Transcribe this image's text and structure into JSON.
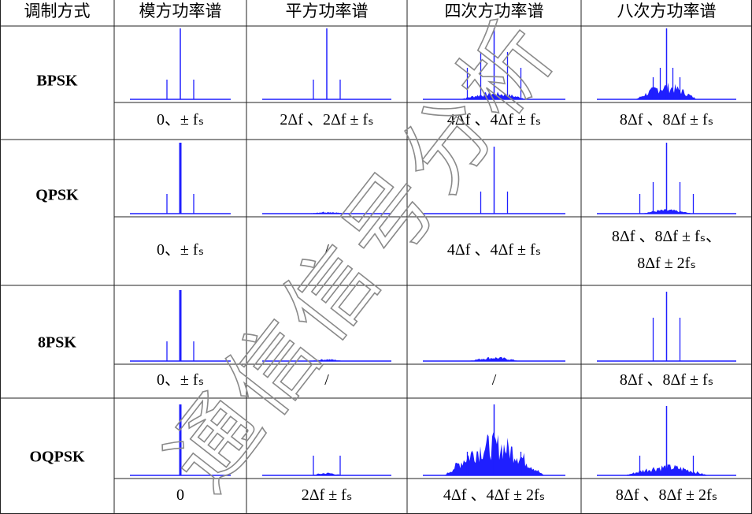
{
  "header": [
    "调制方式",
    "模方功率谱",
    "平方功率谱",
    "四次方功率谱",
    "八次方功率谱"
  ],
  "rows": [
    {
      "modulation": "BPSK",
      "features": [
        [
          "0、± fₛ"
        ],
        [
          "2Δf 、2Δf ± fₛ"
        ],
        [
          "4Δf 、4Δf ± fₛ"
        ],
        [
          "8Δf 、8Δf ± fₛ"
        ]
      ]
    },
    {
      "modulation": "QPSK",
      "features": [
        [
          "0、± fₛ"
        ],
        [
          "/"
        ],
        [
          "4Δf 、4Δf ± fₛ"
        ],
        [
          "8Δf 、8Δf ± fₛ、",
          "8Δf ± 2fₛ"
        ]
      ]
    },
    {
      "modulation": "8PSK",
      "features": [
        [
          "0、± fₛ"
        ],
        [
          "/"
        ],
        [
          "/"
        ],
        [
          "8Δf 、8Δf ± fₛ"
        ]
      ]
    },
    {
      "modulation": "OQPSK",
      "features": [
        [
          "0"
        ],
        [
          "2Δf ± fₛ"
        ],
        [
          "4Δf 、4Δf ± 2fₛ"
        ],
        [
          "8Δf 、8Δf ± 2fₛ"
        ]
      ]
    }
  ],
  "watermark": "通信信号分析"
}
